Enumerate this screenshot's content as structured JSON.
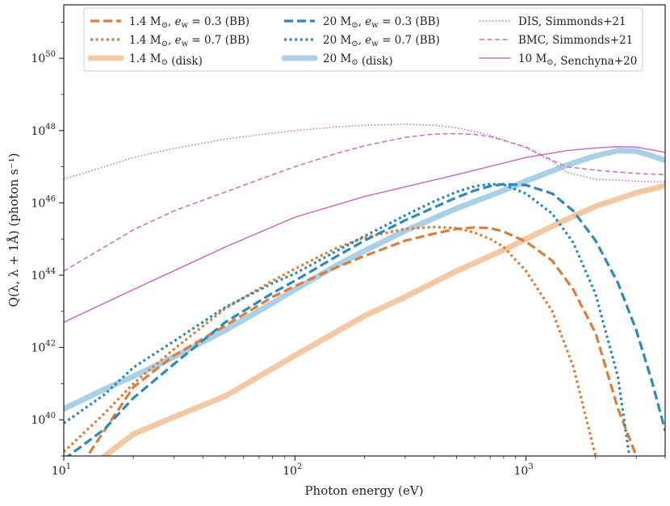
{
  "chart_data": {
    "type": "line",
    "title": "",
    "xlabel": "Photon energy (eV)",
    "ylabel": "Q(λ, λ + 1Å)  (photon s⁻¹)",
    "xscale": "log",
    "yscale": "log",
    "xlim": [
      10,
      4000
    ],
    "ylim": [
      1e+39,
      3e+51
    ],
    "x_ticks": [
      {
        "value": 10,
        "base": "10",
        "exp": "1"
      },
      {
        "value": 100,
        "base": "10",
        "exp": "2"
      },
      {
        "value": 1000,
        "base": "10",
        "exp": "3"
      }
    ],
    "y_ticks": [
      {
        "value": 1e+40,
        "base": "10",
        "exp": "40"
      },
      {
        "value": 1e+42,
        "base": "10",
        "exp": "42"
      },
      {
        "value": 1e+44,
        "base": "10",
        "exp": "44"
      },
      {
        "value": 1e+46,
        "base": "10",
        "exp": "46"
      },
      {
        "value": 1e+48,
        "base": "10",
        "exp": "48"
      },
      {
        "value": 1e+50,
        "base": "10",
        "exp": "50"
      }
    ],
    "legend_position": "top",
    "series": [
      {
        "name": "1.4 M⊙, e_w = 0.3 (BB)",
        "color": "#e07b39",
        "style": "dashed",
        "width": "thick",
        "legend": {
          "prefix": "1.4 M",
          "sub": "⊙",
          "mid": ", ",
          "var": "e",
          "var_sub": "w",
          "suffix": " = 0.3 (BB)"
        },
        "x": [
          12,
          20,
          30,
          50,
          80,
          100,
          150,
          200,
          300,
          400,
          500,
          600,
          700,
          800,
          1000,
          1300,
          1600,
          2000,
          2500,
          3000
        ],
        "y": [
          6e+38,
          8e+40,
          6e+41,
          4e+42,
          2.5e+43,
          5e+43,
          1.6e+44,
          3.4e+44,
          9e+44,
          1.4e+45,
          1.9e+45,
          2.1e+45,
          2e+45,
          1.6e+45,
          8.5e+44,
          2.5e+44,
          4e+43,
          2.5e+42,
          2e+40,
          1e+39
        ]
      },
      {
        "name": "1.4 M⊙, e_w = 0.7 (BB)",
        "color": "#e07b39",
        "style": "dotted",
        "width": "thick",
        "legend": {
          "prefix": "1.4 M",
          "sub": "⊙",
          "mid": ", ",
          "var": "e",
          "var_sub": "w",
          "suffix": " = 0.7 (BB)"
        },
        "x": [
          10,
          15,
          20,
          30,
          50,
          80,
          100,
          150,
          200,
          300,
          400,
          500,
          600,
          700,
          800,
          1000,
          1300,
          1600,
          2000
        ],
        "y": [
          1.3e+39,
          1.5e+40,
          1e+41,
          9e+41,
          1.2e+43,
          7e+43,
          1.5e+44,
          5.5e+44,
          1.1e+45,
          1.9e+45,
          2.15e+45,
          2e+45,
          1.5e+45,
          1e+45,
          6e+44,
          1.3e+44,
          1e+43,
          3e+41,
          1e+39
        ]
      },
      {
        "name": "1.4 M⊙ (disk)",
        "color": "#f5c7a3",
        "style": "solid",
        "width": "heavy",
        "legend": {
          "prefix": "1.4 M",
          "sub": "⊙",
          "mid": "",
          "var": "",
          "var_sub": "",
          "suffix": " (disk)"
        },
        "x": [
          14,
          20,
          30,
          50,
          100,
          200,
          300,
          500,
          800,
          1000,
          1500,
          2000,
          3000,
          4000
        ],
        "y": [
          7e+38,
          4e+39,
          1.2e+40,
          4.5e+40,
          6e+41,
          7.5e+42,
          2.5e+43,
          1.3e+44,
          5e+44,
          1e+45,
          3.5e+45,
          8e+45,
          1.9e+46,
          3e+46
        ]
      },
      {
        "name": "20 M⊙, e_w = 0.3 (BB)",
        "color": "#2d8ab8",
        "style": "dashed",
        "width": "thick",
        "legend": {
          "prefix": "20 M",
          "sub": "⊙",
          "mid": ", ",
          "var": "e",
          "var_sub": "w",
          "suffix": " = 0.3 (BB)"
        },
        "x": [
          10,
          15,
          20,
          30,
          50,
          80,
          100,
          150,
          200,
          300,
          400,
          500,
          600,
          700,
          800,
          1000,
          1300,
          1600,
          2000,
          2500,
          3000,
          3500,
          4000
        ],
        "y": [
          8e+38,
          5.5e+39,
          4e+40,
          3.5e+41,
          5e+42,
          3.2e+43,
          7e+43,
          3.2e+44,
          9e+44,
          3.3e+45,
          7.5e+45,
          1.4e+46,
          2.2e+46,
          2.9e+46,
          3.3e+46,
          3.1e+46,
          1.8e+46,
          6e+45,
          9e+44,
          6e+43,
          3e+42,
          1.2e+41,
          5e+39
        ]
      },
      {
        "name": "20 M⊙, e_w = 0.7 (BB)",
        "color": "#2d8ab8",
        "style": "dotted",
        "width": "thick",
        "legend": {
          "prefix": "20 M",
          "sub": "⊙",
          "mid": ", ",
          "var": "e",
          "var_sub": "w",
          "suffix": " = 0.7 (BB)"
        },
        "x": [
          10,
          15,
          20,
          30,
          50,
          80,
          100,
          150,
          200,
          300,
          400,
          500,
          600,
          700,
          800,
          1000,
          1300,
          1600,
          2000,
          2500,
          2800
        ],
        "y": [
          8e+39,
          5e+40,
          2.8e+41,
          1.5e+42,
          1.3e+43,
          6e+43,
          1.1e+44,
          4.5e+44,
          1.2e+45,
          4.5e+45,
          1.1e+46,
          2e+46,
          2.9e+46,
          3.3e+46,
          3.2e+46,
          1.8e+46,
          5e+45,
          8e+44,
          3e+43,
          1.5e+41,
          1e+39
        ]
      },
      {
        "name": "20 M⊙ (disk)",
        "color": "#a9d0e6",
        "style": "solid",
        "width": "heavy",
        "legend": {
          "prefix": "20 M",
          "sub": "⊙",
          "mid": "",
          "var": "",
          "var_sub": "",
          "suffix": " (disk)"
        },
        "x": [
          10,
          15,
          20,
          30,
          50,
          80,
          100,
          150,
          200,
          300,
          500,
          800,
          1000,
          1500,
          2000,
          2500,
          3000,
          3500,
          4000
        ],
        "y": [
          2e+40,
          7e+40,
          1.6e+41,
          5.5e+41,
          3e+42,
          1.7e+43,
          4e+43,
          1.8e+44,
          4.7e+44,
          1.7e+45,
          7e+45,
          2.2e+46,
          4e+46,
          1.1e+47,
          2e+47,
          2.8e+47,
          2.7e+47,
          2e+47,
          1.5e+47
        ]
      },
      {
        "name": "DIS, Simmonds+21",
        "color": "#c86ec4",
        "style": "dotted",
        "width": "thin",
        "legend": {
          "prefix": "DIS, Simmonds+21",
          "sub": "",
          "mid": "",
          "var": "",
          "var_sub": "",
          "suffix": ""
        },
        "x": [
          10,
          15,
          20,
          30,
          50,
          80,
          100,
          150,
          200,
          300,
          400,
          500,
          700,
          1000,
          1300,
          1500,
          2000,
          3000,
          4000
        ],
        "y": [
          4.5e+46,
          1e+47,
          1.8e+47,
          3.2e+47,
          5.8e+47,
          8.5e+47,
          1e+48,
          1.25e+48,
          1.4e+48,
          1.5e+48,
          1.4e+48,
          1.2e+48,
          7.5e+47,
          3.3e+47,
          1.4e+47,
          7e+46,
          4.5e+46,
          4e+46,
          3.8e+46
        ]
      },
      {
        "name": "BMC, Simmonds+21",
        "color": "#c86ec4",
        "style": "dashed",
        "width": "thin",
        "legend": {
          "prefix": "BMC, Simmonds+21",
          "sub": "",
          "mid": "",
          "var": "",
          "var_sub": "",
          "suffix": ""
        },
        "x": [
          10,
          15,
          20,
          30,
          50,
          80,
          100,
          150,
          200,
          300,
          400,
          500,
          600,
          700,
          1000,
          1300,
          1500,
          2000,
          3000,
          4000
        ],
        "y": [
          1.3e+44,
          6e+44,
          1.8e+45,
          6e+45,
          2e+46,
          6e+46,
          1e+47,
          2.3e+47,
          3.8e+47,
          6.5e+47,
          8e+47,
          8.2e+47,
          7.8e+47,
          6.8e+47,
          3.5e+47,
          1.5e+47,
          1e+47,
          8e+46,
          6.5e+46,
          6e+46
        ]
      },
      {
        "name": "10 M⊙, Senchyna+20",
        "color": "#c86ec4",
        "style": "solid",
        "width": "thin",
        "legend": {
          "prefix": "10 M",
          "sub": "⊙",
          "mid": "",
          "var": "",
          "var_sub": "",
          "suffix": ", Senchyna+20"
        },
        "x": [
          10,
          20,
          50,
          100,
          200,
          500,
          1000,
          1500,
          2000,
          2500,
          3000,
          4000
        ],
        "y": [
          5e+42,
          4e+43,
          6e+44,
          4e+45,
          1.5e+46,
          6e+46,
          1.8e+47,
          2.8e+47,
          3.3e+47,
          3.6e+47,
          3.5e+47,
          2.5e+47
        ]
      }
    ]
  }
}
